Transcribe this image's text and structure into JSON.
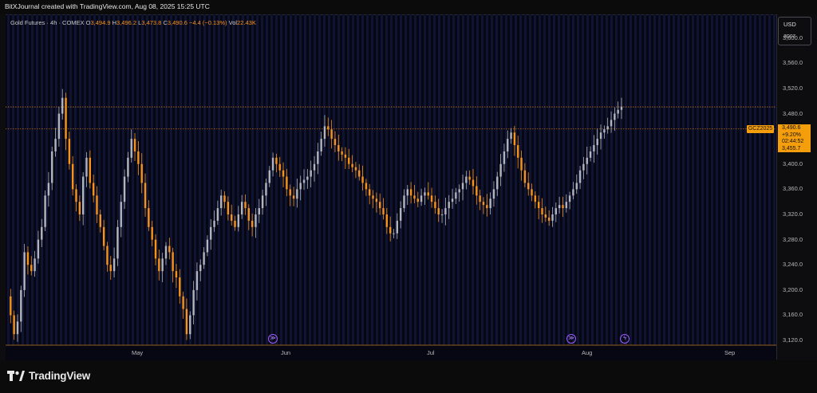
{
  "header": {
    "text": "BitXJournal created with TradingView.com, Aug 08, 2025 15:25 UTC"
  },
  "legend": {
    "symbol": "Gold Futures · 4h · COMEX",
    "open_key": "O",
    "open": "3,494.9",
    "high_key": "H",
    "high": "3,496.2",
    "low_key": "L",
    "low": "3,473.8",
    "close_key": "C",
    "close": "3,490.6",
    "change": "−4.4 (−0.13%)",
    "vol_key": "Vol",
    "vol": "22.43K"
  },
  "scale": {
    "currency": "USD",
    "unit": "apoz"
  },
  "price_tag": {
    "symbol": "GCZ2025",
    "price": "3,490.6",
    "change_pct": "+9.20%",
    "countdown": "02:44:52",
    "ref_price": "3,455.7"
  },
  "brand": {
    "name": "TradingView"
  },
  "colors": {
    "bull": "#b2b5be",
    "bear": "#f7931a",
    "accent": "#f59e0b",
    "event": "#9b5cff"
  },
  "events": [
    {
      "icon": "forward-arrows-icon",
      "glyph": "≫"
    },
    {
      "icon": "forward-arrows-icon",
      "glyph": "≫"
    },
    {
      "icon": "lightning-icon",
      "glyph": "ϟ"
    }
  ],
  "chart_data": {
    "type": "candlestick",
    "title": "Gold Futures · 4h · COMEX",
    "x_ticks": [
      "May",
      "Jun",
      "Jul",
      "Aug",
      "Sep"
    ],
    "y_ticks": [
      "3,600.0",
      "3,560.0",
      "3,520.0",
      "3,480.0",
      "3,440.0",
      "3,400.0",
      "3,360.0",
      "3,320.0",
      "3,280.0",
      "3,240.0",
      "3,200.0",
      "3,160.0",
      "3,120.0"
    ],
    "ylim": [
      3110,
      3635
    ],
    "last_price": 3490.6,
    "ref_price": 3455.7,
    "candles": [
      3190,
      3160,
      3130,
      3150,
      3200,
      3260,
      3240,
      3230,
      3250,
      3280,
      3300,
      3350,
      3370,
      3420,
      3440,
      3480,
      3505,
      3440,
      3400,
      3360,
      3340,
      3320,
      3380,
      3410,
      3370,
      3350,
      3320,
      3300,
      3270,
      3240,
      3230,
      3250,
      3300,
      3340,
      3380,
      3410,
      3440,
      3420,
      3400,
      3370,
      3330,
      3300,
      3280,
      3250,
      3230,
      3250,
      3270,
      3260,
      3230,
      3220,
      3190,
      3170,
      3130,
      3160,
      3200,
      3230,
      3240,
      3260,
      3280,
      3300,
      3310,
      3330,
      3350,
      3340,
      3320,
      3310,
      3300,
      3320,
      3340,
      3330,
      3310,
      3300,
      3320,
      3330,
      3350,
      3370,
      3390,
      3410,
      3400,
      3390,
      3380,
      3360,
      3350,
      3345,
      3360,
      3370,
      3375,
      3380,
      3390,
      3400,
      3420,
      3440,
      3460,
      3455,
      3440,
      3430,
      3420,
      3415,
      3410,
      3400,
      3395,
      3390,
      3380,
      3370,
      3360,
      3350,
      3345,
      3340,
      3330,
      3320,
      3300,
      3290,
      3290,
      3310,
      3330,
      3350,
      3360,
      3350,
      3345,
      3340,
      3350,
      3355,
      3350,
      3340,
      3330,
      3320,
      3320,
      3330,
      3340,
      3345,
      3355,
      3360,
      3370,
      3380,
      3375,
      3365,
      3350,
      3340,
      3335,
      3330,
      3345,
      3360,
      3380,
      3400,
      3420,
      3440,
      3450,
      3430,
      3410,
      3390,
      3370,
      3360,
      3350,
      3340,
      3330,
      3320,
      3315,
      3310,
      3320,
      3330,
      3335,
      3330,
      3340,
      3350,
      3360,
      3370,
      3390,
      3400,
      3410,
      3420,
      3430,
      3440,
      3450,
      3455,
      3460,
      3470,
      3480,
      3486,
      3491
    ],
    "candle_x_start": 0.0,
    "candle_x_end": 1.0
  }
}
